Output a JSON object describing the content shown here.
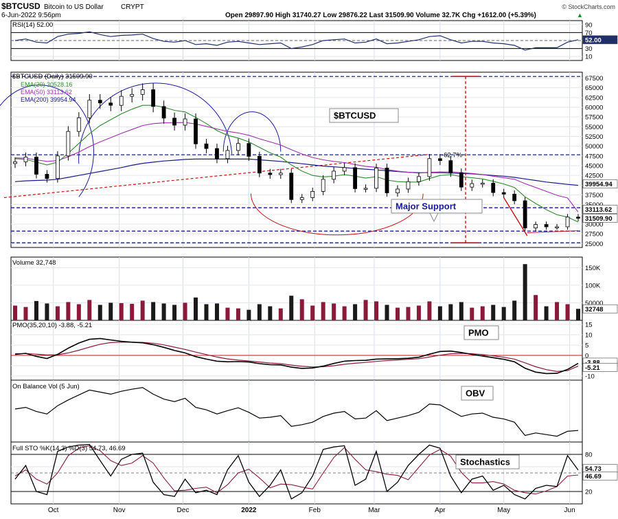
{
  "header": {
    "symbol": "$BTCUSD",
    "name": "Bitcoin to US Dollar",
    "exchange": "CRYPT",
    "date": "6-Jun-2022 9:56pm",
    "quote": "Open 29897.90  High 31740.27  Low 29876.22  Last 31509.90  Volume 32.7K  Chg +1612.00 (+5.39%)",
    "quote_arrow": "▲",
    "credit": "© StockCharts.com"
  },
  "x_axis": {
    "labels": [
      "Oct",
      "Nov",
      "Dec",
      "2022",
      "Feb",
      "Mar",
      "Apr",
      "May",
      "Jun"
    ]
  },
  "panels": {
    "rsi": {
      "label": "RSI(14) 52.00",
      "ticks": [
        "90",
        "70",
        "50",
        "30",
        "10"
      ],
      "last_badge": "52.00"
    },
    "price": {
      "label": "$BTCUSD (Daily) 31509.90",
      "ema20_label": "EMA(20) 30528.16",
      "ema50_label": "EMA(50) 33113.62",
      "ema200_label": "EMA(200) 39954.94",
      "ticks": [
        "67500",
        "65000",
        "62500",
        "60000",
        "57500",
        "55000",
        "52500",
        "50000",
        "47500",
        "45000",
        "42500",
        "40000",
        "37500",
        "35000",
        "32500",
        "30000",
        "27500",
        "25000"
      ],
      "badges": {
        "ema200": "39954.94",
        "ema50": "33113.62",
        "last": "31509.90"
      },
      "annotations": {
        "title_box": "$BTCUSD",
        "support_box": "Major Support",
        "decline": "-62.7%"
      }
    },
    "volume": {
      "label": "Volume 32,748",
      "ticks": [
        "150K",
        "100K",
        "50000"
      ],
      "last_badge": "32748"
    },
    "pmo": {
      "label": "PMO(35,20,10) -3.88, -5.21",
      "ticks": [
        "15",
        "10",
        "5",
        "0",
        "-5",
        "-10"
      ],
      "box": "PMO",
      "badges": [
        "-3.88",
        "-5.21"
      ]
    },
    "obv": {
      "label": "On Balance Vol (5 Jun)",
      "box": "OBV"
    },
    "sto": {
      "label": "Full STO %K(14,3) %D(3) 54.73, 46.69",
      "ticks": [
        "80",
        "60",
        "20"
      ],
      "box": "Stochastics",
      "badges": [
        "54.73",
        "46.69"
      ]
    }
  },
  "colors": {
    "ema20": "#2e8b2e",
    "ema50": "#a030b0",
    "ema200": "#1a1a8c",
    "up": "#ffffff",
    "down": "#000000",
    "volume_up": "#8b1a3a",
    "volume_down": "#1a1a1a",
    "guide": "#1a1aa0",
    "annotation_red": "#cc1111",
    "pmo_signal": "#8b1a3a"
  },
  "chart_data": {
    "type": "line",
    "title": "$BTCUSD (Daily)",
    "x": [
      "2021-09-13",
      "2021-09-18",
      "2021-09-23",
      "2021-09-28",
      "2021-10-03",
      "2021-10-08",
      "2021-10-13",
      "2021-10-18",
      "2021-10-23",
      "2021-10-28",
      "2021-11-02",
      "2021-11-07",
      "2021-11-12",
      "2021-11-17",
      "2021-11-22",
      "2021-11-27",
      "2021-12-02",
      "2021-12-07",
      "2021-12-12",
      "2021-12-17",
      "2021-12-22",
      "2021-12-27",
      "2022-01-01",
      "2022-01-06",
      "2022-01-11",
      "2022-01-16",
      "2022-01-21",
      "2022-01-26",
      "2022-01-31",
      "2022-02-05",
      "2022-02-10",
      "2022-02-15",
      "2022-02-20",
      "2022-02-25",
      "2022-03-02",
      "2022-03-07",
      "2022-03-12",
      "2022-03-17",
      "2022-03-22",
      "2022-03-27",
      "2022-04-01",
      "2022-04-06",
      "2022-04-11",
      "2022-04-16",
      "2022-04-21",
      "2022-04-26",
      "2022-05-01",
      "2022-05-06",
      "2022-05-11",
      "2022-05-16",
      "2022-05-21",
      "2022-05-26",
      "2022-05-31",
      "2022-06-05"
    ],
    "series": [
      {
        "name": "$BTCUSD",
        "values": [
          46000,
          47200,
          42800,
          41700,
          47500,
          53800,
          57300,
          61800,
          61100,
          60500,
          62800,
          63300,
          64500,
          60200,
          57200,
          55400,
          57000,
          50600,
          49400,
          46800,
          48900,
          50700,
          47400,
          43100,
          42700,
          43100,
          36300,
          36800,
          38400,
          41500,
          43600,
          44500,
          39100,
          39200,
          44400,
          38000,
          39000,
          40900,
          42200,
          46800,
          46300,
          43200,
          39500,
          40400,
          40500,
          38100,
          37700,
          36000,
          29000,
          29900,
          29300,
          29300,
          31800,
          31509.9
        ]
      },
      {
        "name": "EMA(20)",
        "values": [
          46800,
          46600,
          45900,
          45200,
          45900,
          48200,
          50700,
          53200,
          55300,
          56800,
          58300,
          59500,
          60500,
          60500,
          60000,
          59200,
          58800,
          57400,
          55800,
          54000,
          52800,
          52100,
          51100,
          49700,
          48300,
          47200,
          45200,
          43600,
          42500,
          42100,
          42300,
          42700,
          42300,
          41800,
          42200,
          41300,
          40900,
          40800,
          40800,
          41700,
          42500,
          42700,
          42200,
          41900,
          41600,
          41000,
          40300,
          39400,
          37000,
          35300,
          33700,
          32400,
          31800,
          30528.16
        ]
      },
      {
        "name": "EMA(50)",
        "values": [
          47000,
          46900,
          46500,
          46100,
          46300,
          47300,
          48500,
          49900,
          51100,
          52200,
          53300,
          54300,
          55300,
          55800,
          56000,
          56000,
          56100,
          55700,
          55100,
          54400,
          53800,
          53400,
          52800,
          51900,
          51100,
          50300,
          49100,
          48000,
          47100,
          46500,
          46100,
          45800,
          45300,
          44800,
          44600,
          44000,
          43600,
          43300,
          43100,
          43300,
          43400,
          43400,
          43200,
          43000,
          42700,
          42300,
          41900,
          41500,
          40400,
          39400,
          38400,
          37400,
          36700,
          33113.62
        ]
      },
      {
        "name": "EMA(200)",
        "values": [
          40900,
          41100,
          41200,
          41300,
          41500,
          42000,
          42500,
          43000,
          43500,
          44000,
          44500,
          45100,
          45600,
          45900,
          46200,
          46400,
          46600,
          46700,
          46700,
          46700,
          46700,
          46700,
          46700,
          46500,
          46300,
          46100,
          45800,
          45500,
          45200,
          44900,
          44700,
          44500,
          44300,
          44100,
          43900,
          43700,
          43500,
          43300,
          43200,
          43200,
          43200,
          43100,
          43000,
          42900,
          42700,
          42500,
          42300,
          42000,
          41600,
          41200,
          40800,
          40500,
          40200,
          39954.94
        ]
      }
    ],
    "rsi": [
      50,
      54,
      46,
      44,
      60,
      66,
      68,
      72,
      65,
      60,
      63,
      64,
      66,
      55,
      48,
      46,
      50,
      40,
      42,
      38,
      46,
      48,
      44,
      40,
      42,
      44,
      30,
      34,
      40,
      50,
      52,
      54,
      44,
      46,
      54,
      42,
      44,
      48,
      52,
      60,
      62,
      52,
      44,
      48,
      48,
      44,
      42,
      38,
      26,
      32,
      32,
      32,
      46,
      52
    ],
    "pmo": [
      0.5,
      1.0,
      -0.5,
      -1.5,
      0.5,
      3.5,
      6.0,
      7.8,
      8.2,
      7.5,
      6.8,
      6.4,
      6.1,
      5.2,
      3.9,
      2.4,
      1.2,
      -0.6,
      -1.8,
      -2.8,
      -3.1,
      -3.0,
      -3.2,
      -4.0,
      -4.5,
      -4.6,
      -5.7,
      -6.3,
      -6.1,
      -5.2,
      -3.9,
      -2.8,
      -2.5,
      -2.4,
      -1.8,
      -1.7,
      -1.6,
      -1.4,
      -0.9,
      0.6,
      1.9,
      2.1,
      1.4,
      0.5,
      -0.3,
      -1.1,
      -1.9,
      -3.1,
      -6.2,
      -8.1,
      -8.8,
      -8.7,
      -6.8,
      -3.88
    ],
    "pmo_signal": [
      0.8,
      0.9,
      0.6,
      0.2,
      0.3,
      1.2,
      2.5,
      4.0,
      5.4,
      6.2,
      6.4,
      6.4,
      6.3,
      5.9,
      5.1,
      4.0,
      2.9,
      1.6,
      0.4,
      -0.8,
      -1.7,
      -2.3,
      -2.7,
      -3.2,
      -3.7,
      -4.0,
      -4.7,
      -5.3,
      -5.6,
      -5.5,
      -5.0,
      -4.3,
      -3.8,
      -3.4,
      -2.9,
      -2.5,
      -2.2,
      -1.9,
      -1.6,
      -0.8,
      0.1,
      0.8,
      1.0,
      0.8,
      0.4,
      -0.2,
      -0.9,
      -1.8,
      -3.6,
      -5.5,
      -6.9,
      -7.8,
      -7.4,
      -5.21
    ],
    "obv": [
      0.0,
      0.4,
      -0.6,
      -1.2,
      0.8,
      2.2,
      3.4,
      4.6,
      4.1,
      3.6,
      4.3,
      4.8,
      5.2,
      3.6,
      2.4,
      1.8,
      2.6,
      0.4,
      -0.2,
      -1.2,
      -0.4,
      0.3,
      -0.8,
      -2.2,
      -2.0,
      -1.6,
      -4.2,
      -3.8,
      -3.2,
      -1.8,
      -1.0,
      -0.6,
      -2.4,
      -2.2,
      -0.4,
      -2.8,
      -2.2,
      -1.6,
      -0.8,
      1.2,
      1.0,
      -0.4,
      -1.8,
      -1.2,
      -1.0,
      -2.0,
      -2.4,
      -3.2,
      -6.4,
      -5.8,
      -6.2,
      -6.6,
      -5.4,
      -5.2
    ],
    "volume": [
      42000,
      38000,
      55000,
      48000,
      40000,
      52000,
      46000,
      58000,
      44000,
      50000,
      49000,
      47000,
      56000,
      52000,
      48000,
      44000,
      50000,
      65000,
      46000,
      48000,
      36000,
      34000,
      30000,
      46000,
      40000,
      34000,
      70000,
      60000,
      42000,
      52000,
      48000,
      40000,
      46000,
      58000,
      54000,
      44000,
      36000,
      38000,
      42000,
      54000,
      40000,
      46000,
      52000,
      36000,
      40000,
      44000,
      38000,
      56000,
      160000,
      72000,
      40000,
      52000,
      46000,
      32748
    ],
    "sto_k": [
      40,
      62,
      20,
      15,
      85,
      92,
      95,
      96,
      70,
      45,
      72,
      80,
      82,
      35,
      15,
      12,
      40,
      18,
      22,
      15,
      55,
      78,
      35,
      12,
      30,
      55,
      8,
      18,
      45,
      88,
      92,
      94,
      30,
      40,
      85,
      20,
      35,
      62,
      80,
      95,
      90,
      45,
      18,
      40,
      45,
      22,
      30,
      15,
      8,
      25,
      30,
      28,
      78,
      54.73
    ],
    "sto_d": [
      45,
      55,
      40,
      32,
      50,
      78,
      90,
      94,
      86,
      70,
      62,
      66,
      78,
      66,
      42,
      21,
      22,
      25,
      27,
      18,
      31,
      50,
      56,
      42,
      26,
      32,
      31,
      27,
      24,
      50,
      75,
      91,
      72,
      55,
      52,
      48,
      46,
      39,
      59,
      79,
      88,
      77,
      51,
      34,
      34,
      36,
      32,
      22,
      18,
      16,
      21,
      28,
      45,
      46.69
    ],
    "ylim": [
      24000,
      69000
    ]
  }
}
